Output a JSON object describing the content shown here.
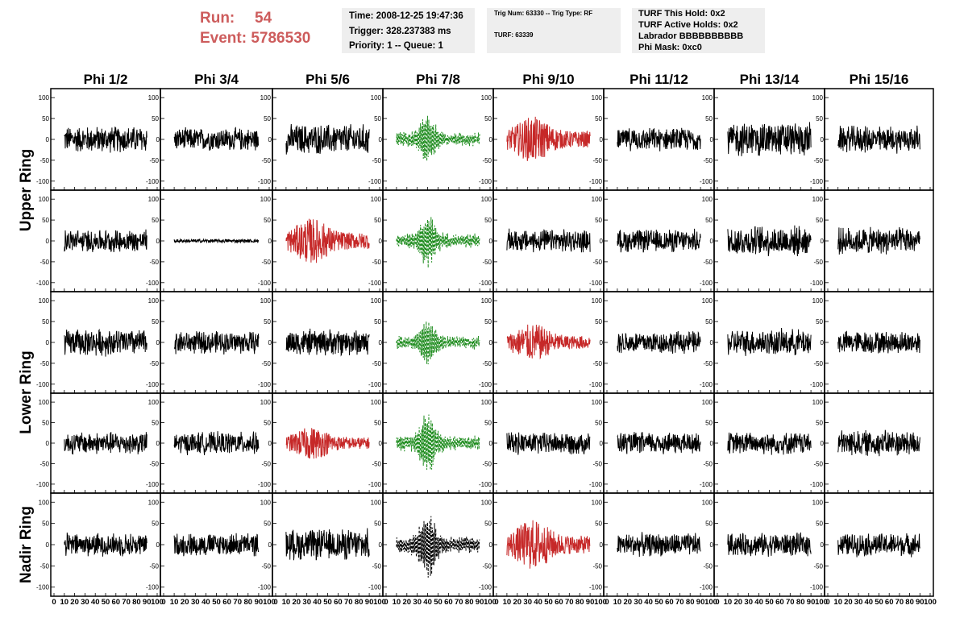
{
  "header": {
    "run_label": "Run:",
    "run_value": "54",
    "event_label": "Event:",
    "event_value": "5786530",
    "time": "Time: 2008-12-25 19:47:36",
    "trigger": "Trigger: 328.237383 ms",
    "priority": "Priority: 1 -- Queue: 1",
    "trig_num": "Trig Num: 63330 -- Trig Type: RF",
    "turf": "TURF: 63339",
    "turf_this_hold": "TURF This Hold: 0x2",
    "turf_active_holds": "TURF Active Holds: 0x2",
    "labrador": "Labrador BBBBBBBBBB",
    "phi_mask": "Phi Mask: 0xc0"
  },
  "colors": {
    "title_red": "#cd5c5c",
    "trace_black": "#000000",
    "trace_red": "#c62828",
    "trace_green": "#1e8c1e",
    "panel_bg": "#eeeeee"
  },
  "chart_data": {
    "type": "line",
    "columns": [
      "Phi 1/2",
      "Phi 3/4",
      "Phi 5/6",
      "Phi 7/8",
      "Phi 9/10",
      "Phi 11/12",
      "Phi 13/14",
      "Phi 15/16"
    ],
    "row_groups": [
      {
        "label": "Upper Ring",
        "rows": [
          0,
          1
        ]
      },
      {
        "label": "Lower Ring",
        "rows": [
          2,
          3
        ]
      },
      {
        "label": "Nadir Ring",
        "rows": [
          4
        ]
      }
    ],
    "xlim": [
      0,
      100
    ],
    "ylim": [
      -110,
      110
    ],
    "x_ticks": [
      0,
      10,
      20,
      30,
      40,
      50,
      60,
      70,
      80,
      90,
      100
    ],
    "y_ticks": [
      -100,
      -50,
      0,
      50,
      100
    ],
    "grid": false,
    "trace_styles": [
      [
        "black",
        "black",
        "black",
        "green-dashed",
        "red",
        "black",
        "black",
        "black"
      ],
      [
        "black",
        "black-flat",
        "red",
        "green-dashed",
        "black",
        "black",
        "black",
        "black"
      ],
      [
        "black",
        "black",
        "black",
        "green-dashed",
        "red",
        "black",
        "black",
        "black"
      ],
      [
        "black",
        "black",
        "red",
        "green-dashed",
        "black",
        "black",
        "black",
        "black"
      ],
      [
        "black",
        "black",
        "black",
        "black-dashed",
        "red",
        "black",
        "black",
        "black"
      ]
    ],
    "peak_amplitudes": [
      [
        35,
        30,
        40,
        65,
        55,
        30,
        45,
        35
      ],
      [
        30,
        4,
        55,
        65,
        30,
        30,
        40,
        35
      ],
      [
        35,
        30,
        35,
        60,
        45,
        30,
        35,
        30
      ],
      [
        30,
        30,
        40,
        80,
        30,
        30,
        30,
        35
      ],
      [
        30,
        30,
        40,
        85,
        60,
        30,
        30,
        30
      ]
    ]
  }
}
